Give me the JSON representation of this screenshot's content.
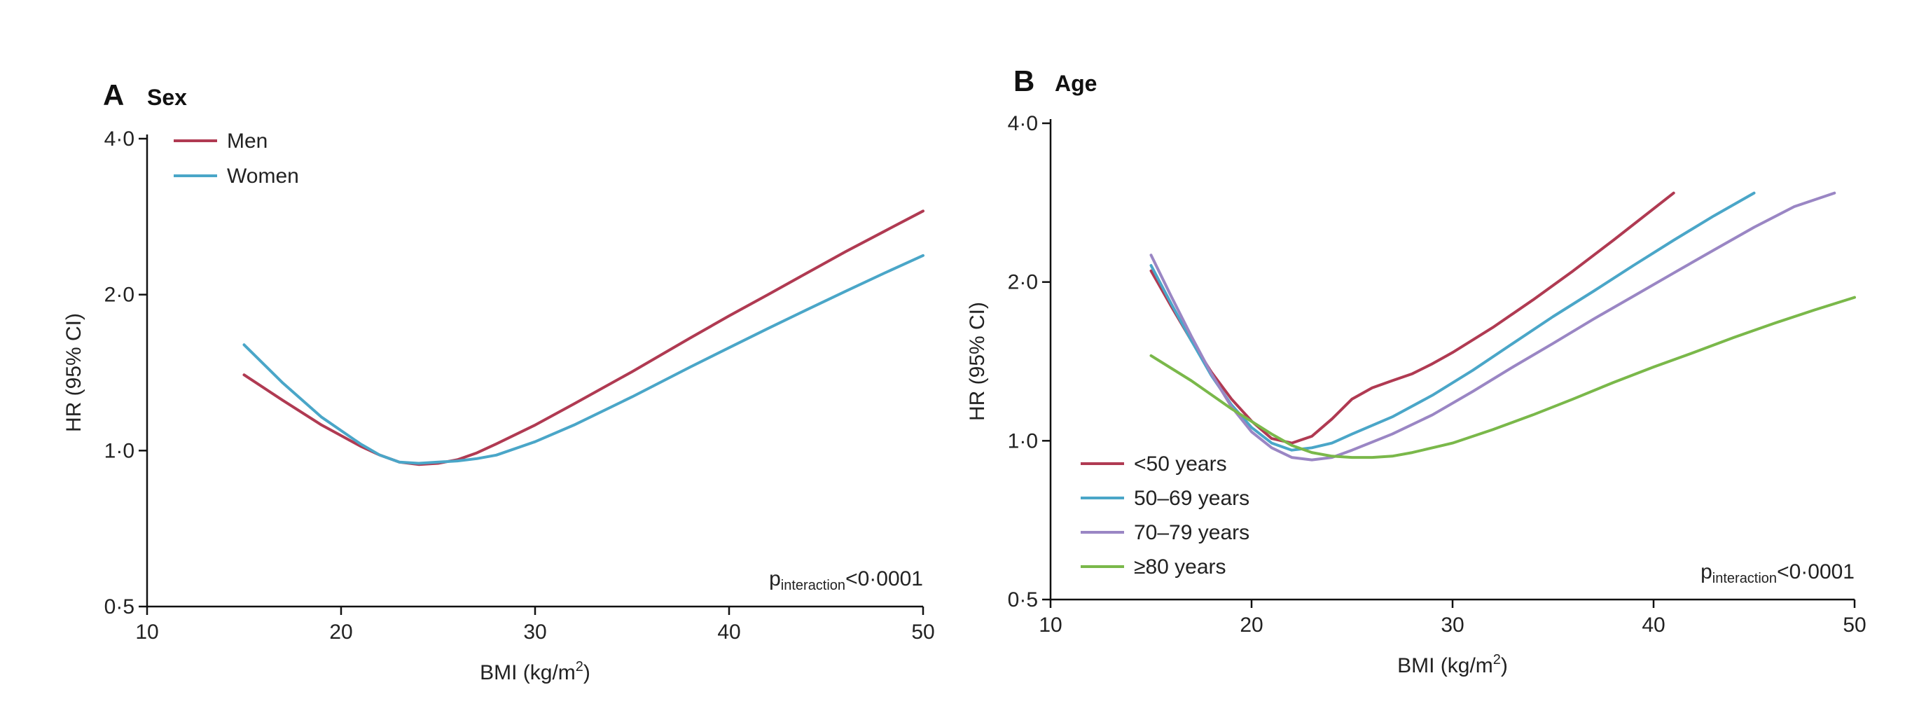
{
  "chart_data": [
    {
      "type": "line",
      "panel_letter": "A",
      "title": "Sex",
      "xlabel": "BMI (kg/m",
      "xlabel_sup": "2",
      "xlabel_end": ")",
      "ylabel": "HR (95% CI)",
      "xlim": [
        10,
        50
      ],
      "ylim": [
        0.5,
        4.0
      ],
      "y_scale": "log",
      "x_ticks": [
        10,
        20,
        30,
        40,
        50
      ],
      "x_tick_labels": [
        "10",
        "20",
        "30",
        "40",
        "50"
      ],
      "y_ticks": [
        0.5,
        1.0,
        2.0,
        4.0
      ],
      "y_tick_labels": [
        "0·5",
        "1·0",
        "2·0",
        "4·0"
      ],
      "legend_position": "top-left",
      "annotation": {
        "main": "p",
        "sub": "interaction",
        "rest": "<0·0001"
      },
      "series": [
        {
          "name": "Men",
          "color": "#b03a52",
          "x": [
            15,
            17,
            19,
            21,
            22,
            23,
            24,
            25,
            26,
            27,
            28,
            30,
            32,
            35,
            38,
            40,
            42,
            44,
            46,
            48,
            50
          ],
          "y": [
            1.4,
            1.25,
            1.12,
            1.02,
            0.98,
            0.95,
            0.94,
            0.945,
            0.96,
            0.99,
            1.03,
            1.12,
            1.23,
            1.42,
            1.65,
            1.82,
            2.0,
            2.2,
            2.42,
            2.65,
            2.9
          ]
        },
        {
          "name": "Women",
          "color": "#4aa6c8",
          "x": [
            15,
            17,
            19,
            21,
            22,
            23,
            24,
            25,
            26,
            27,
            28,
            30,
            32,
            35,
            38,
            40,
            42,
            44,
            46,
            48,
            50
          ],
          "y": [
            1.6,
            1.35,
            1.16,
            1.03,
            0.98,
            0.95,
            0.945,
            0.95,
            0.955,
            0.965,
            0.98,
            1.04,
            1.12,
            1.27,
            1.45,
            1.58,
            1.72,
            1.87,
            2.03,
            2.2,
            2.38
          ]
        }
      ]
    },
    {
      "type": "line",
      "panel_letter": "B",
      "title": "Age",
      "xlabel": "BMI (kg/m",
      "xlabel_sup": "2",
      "xlabel_end": ")",
      "ylabel": "HR (95% CI)",
      "xlim": [
        10,
        50
      ],
      "ylim": [
        0.5,
        4.0
      ],
      "y_scale": "log",
      "x_ticks": [
        10,
        20,
        30,
        40,
        50
      ],
      "x_tick_labels": [
        "10",
        "20",
        "30",
        "40",
        "50"
      ],
      "y_ticks": [
        0.5,
        1.0,
        2.0,
        4.0
      ],
      "y_tick_labels": [
        "0·5",
        "1·0",
        "2·0",
        "4·0"
      ],
      "legend_position": "bottom-left",
      "annotation": {
        "main": "p",
        "sub": "interaction",
        "rest": "<0·0001"
      },
      "series": [
        {
          "name": "<50 years",
          "color": "#b03a52",
          "x": [
            15,
            16,
            17,
            18,
            19,
            20,
            21,
            22,
            23,
            24,
            25,
            26,
            27,
            28,
            29,
            30,
            32,
            34,
            36,
            38,
            41
          ],
          "y": [
            2.1,
            1.8,
            1.55,
            1.35,
            1.2,
            1.09,
            1.01,
            0.99,
            1.02,
            1.1,
            1.2,
            1.26,
            1.3,
            1.34,
            1.4,
            1.47,
            1.64,
            1.85,
            2.1,
            2.4,
            2.95
          ]
        },
        {
          "name": "50–69 years",
          "color": "#4aa6c8",
          "x": [
            15,
            16,
            17,
            18,
            19,
            20,
            21,
            22,
            23,
            24,
            25,
            27,
            29,
            31,
            33,
            35,
            37,
            39,
            41,
            43,
            45
          ],
          "y": [
            2.15,
            1.82,
            1.55,
            1.33,
            1.17,
            1.06,
            0.99,
            0.96,
            0.97,
            0.99,
            1.03,
            1.11,
            1.22,
            1.36,
            1.53,
            1.72,
            1.92,
            2.15,
            2.4,
            2.67,
            2.95
          ]
        },
        {
          "name": "70–79 years",
          "color": "#9a86c4",
          "x": [
            15,
            16,
            17,
            18,
            19,
            20,
            21,
            22,
            23,
            24,
            25,
            27,
            29,
            31,
            33,
            35,
            37,
            39,
            41,
            43,
            45,
            47,
            49
          ],
          "y": [
            2.25,
            1.88,
            1.58,
            1.34,
            1.16,
            1.04,
            0.97,
            0.93,
            0.92,
            0.93,
            0.96,
            1.03,
            1.12,
            1.24,
            1.38,
            1.53,
            1.7,
            1.88,
            2.08,
            2.3,
            2.54,
            2.78,
            2.95
          ]
        },
        {
          "name": "≥80 years",
          "color": "#7ab84a",
          "x": [
            15,
            17,
            19,
            21,
            22,
            23,
            24,
            25,
            26,
            27,
            28,
            30,
            32,
            34,
            36,
            38,
            40,
            42,
            44,
            46,
            48,
            50
          ],
          "y": [
            1.45,
            1.3,
            1.15,
            1.03,
            0.98,
            0.95,
            0.935,
            0.93,
            0.93,
            0.935,
            0.95,
            0.99,
            1.05,
            1.12,
            1.2,
            1.29,
            1.38,
            1.47,
            1.57,
            1.67,
            1.77,
            1.87
          ]
        }
      ]
    }
  ]
}
